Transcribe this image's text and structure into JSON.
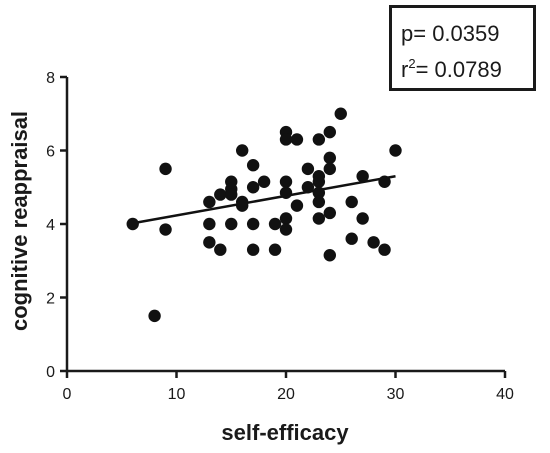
{
  "stats": {
    "p_text": "p= 0.0359",
    "r2_prefix": "r",
    "r2_exp": "2",
    "r2_value": "= 0.0789"
  },
  "chart_data": {
    "type": "scatter",
    "xlabel": "self-efficacy",
    "ylabel": "cognitive reappraisal",
    "xlim": [
      0,
      40
    ],
    "ylim": [
      0,
      8
    ],
    "xticks": [
      0,
      10,
      20,
      30,
      40
    ],
    "yticks": [
      0,
      2,
      4,
      6,
      8
    ],
    "grid": false,
    "points": [
      [
        6,
        4.0
      ],
      [
        8,
        1.5
      ],
      [
        9,
        5.5
      ],
      [
        9,
        3.85
      ],
      [
        13,
        4.6
      ],
      [
        13,
        4.0
      ],
      [
        13,
        3.5
      ],
      [
        14,
        4.8
      ],
      [
        14,
        3.3
      ],
      [
        15,
        5.15
      ],
      [
        15,
        4.95
      ],
      [
        15,
        4.8
      ],
      [
        15,
        4.0
      ],
      [
        16,
        6.0
      ],
      [
        16,
        4.6
      ],
      [
        16,
        4.5
      ],
      [
        17,
        5.6
      ],
      [
        17,
        5.0
      ],
      [
        17,
        4.0
      ],
      [
        17,
        3.3
      ],
      [
        18,
        5.15
      ],
      [
        19,
        4.0
      ],
      [
        19,
        3.3
      ],
      [
        20,
        6.5
      ],
      [
        20,
        6.3
      ],
      [
        20,
        5.15
      ],
      [
        20,
        4.85
      ],
      [
        20,
        4.15
      ],
      [
        20,
        3.85
      ],
      [
        21,
        6.3
      ],
      [
        21,
        4.5
      ],
      [
        22,
        5.5
      ],
      [
        22,
        5.0
      ],
      [
        23,
        6.3
      ],
      [
        23,
        5.3
      ],
      [
        23,
        5.15
      ],
      [
        23,
        4.85
      ],
      [
        23,
        4.6
      ],
      [
        23,
        4.15
      ],
      [
        24,
        6.5
      ],
      [
        24,
        5.8
      ],
      [
        24,
        5.5
      ],
      [
        24,
        4.3
      ],
      [
        24,
        3.15
      ],
      [
        25,
        7.0
      ],
      [
        26,
        4.6
      ],
      [
        26,
        3.6
      ],
      [
        27,
        5.3
      ],
      [
        27,
        4.15
      ],
      [
        28,
        3.5
      ],
      [
        29,
        5.15
      ],
      [
        29,
        3.3
      ],
      [
        30,
        6.0
      ]
    ],
    "regression_line": {
      "x": [
        6,
        30
      ],
      "y": [
        4.02,
        5.3
      ]
    },
    "colors": {
      "points": "#111111",
      "line": "#111111",
      "axis": "#1a1a1a"
    }
  }
}
